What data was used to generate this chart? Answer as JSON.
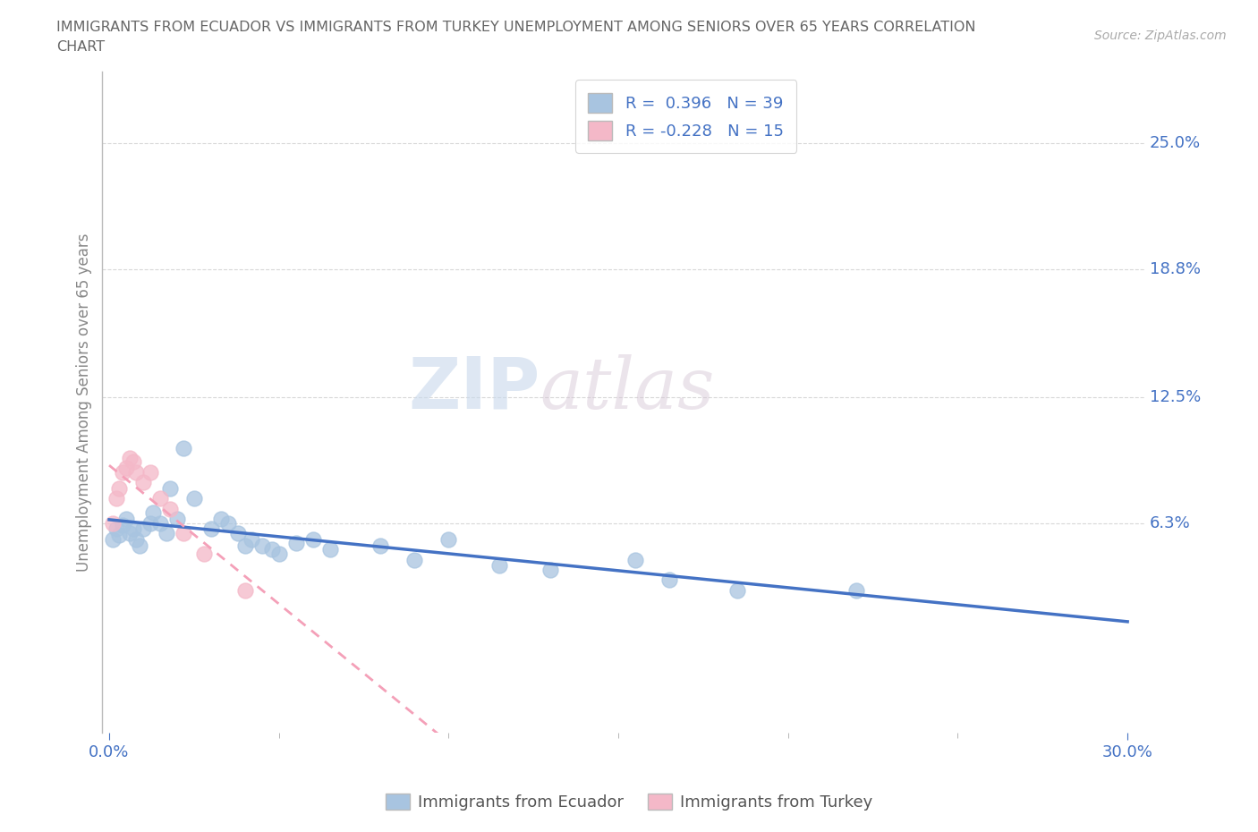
{
  "title": "IMMIGRANTS FROM ECUADOR VS IMMIGRANTS FROM TURKEY UNEMPLOYMENT AMONG SENIORS OVER 65 YEARS CORRELATION\nCHART",
  "source": "Source: ZipAtlas.com",
  "ylabel": "Unemployment Among Seniors over 65 years",
  "xlim": [
    -0.002,
    0.305
  ],
  "ylim": [
    -0.04,
    0.285
  ],
  "ytick_vals": [
    0.0,
    0.063,
    0.125,
    0.188,
    0.25
  ],
  "ytick_labels": [
    "",
    "6.3%",
    "12.5%",
    "18.8%",
    "25.0%"
  ],
  "xtick_vals": [
    0.0,
    0.3
  ],
  "xtick_labels": [
    "0.0%",
    "30.0%"
  ],
  "ecuador_R": 0.396,
  "ecuador_N": 39,
  "turkey_R": -0.228,
  "turkey_N": 15,
  "ecuador_color": "#a8c4e0",
  "turkey_color": "#f4b8c8",
  "ecuador_line_color": "#4472c4",
  "turkey_line_color": "#f4a0b8",
  "ecuador_scatter": [
    [
      0.001,
      0.055
    ],
    [
      0.002,
      0.06
    ],
    [
      0.003,
      0.057
    ],
    [
      0.004,
      0.062
    ],
    [
      0.005,
      0.065
    ],
    [
      0.006,
      0.058
    ],
    [
      0.007,
      0.06
    ],
    [
      0.008,
      0.055
    ],
    [
      0.009,
      0.052
    ],
    [
      0.01,
      0.06
    ],
    [
      0.012,
      0.063
    ],
    [
      0.013,
      0.068
    ],
    [
      0.015,
      0.063
    ],
    [
      0.017,
      0.058
    ],
    [
      0.018,
      0.08
    ],
    [
      0.02,
      0.065
    ],
    [
      0.022,
      0.1
    ],
    [
      0.025,
      0.075
    ],
    [
      0.03,
      0.06
    ],
    [
      0.033,
      0.065
    ],
    [
      0.035,
      0.063
    ],
    [
      0.038,
      0.058
    ],
    [
      0.04,
      0.052
    ],
    [
      0.042,
      0.055
    ],
    [
      0.045,
      0.052
    ],
    [
      0.048,
      0.05
    ],
    [
      0.05,
      0.048
    ],
    [
      0.055,
      0.053
    ],
    [
      0.06,
      0.055
    ],
    [
      0.065,
      0.05
    ],
    [
      0.08,
      0.052
    ],
    [
      0.09,
      0.045
    ],
    [
      0.1,
      0.055
    ],
    [
      0.115,
      0.042
    ],
    [
      0.13,
      0.04
    ],
    [
      0.155,
      0.045
    ],
    [
      0.165,
      0.035
    ],
    [
      0.185,
      0.03
    ],
    [
      0.22,
      0.03
    ]
  ],
  "turkey_scatter": [
    [
      0.001,
      0.063
    ],
    [
      0.002,
      0.075
    ],
    [
      0.003,
      0.08
    ],
    [
      0.004,
      0.088
    ],
    [
      0.005,
      0.09
    ],
    [
      0.006,
      0.095
    ],
    [
      0.007,
      0.093
    ],
    [
      0.008,
      0.088
    ],
    [
      0.01,
      0.083
    ],
    [
      0.012,
      0.088
    ],
    [
      0.015,
      0.075
    ],
    [
      0.018,
      0.07
    ],
    [
      0.022,
      0.058
    ],
    [
      0.028,
      0.048
    ],
    [
      0.04,
      0.03
    ]
  ],
  "watermark_zip": "ZIP",
  "watermark_atlas": "atlas",
  "background_color": "#ffffff",
  "grid_color": "#d8d8d8",
  "title_color": "#666666",
  "axis_color": "#888888",
  "tick_label_color": "#4472c4"
}
